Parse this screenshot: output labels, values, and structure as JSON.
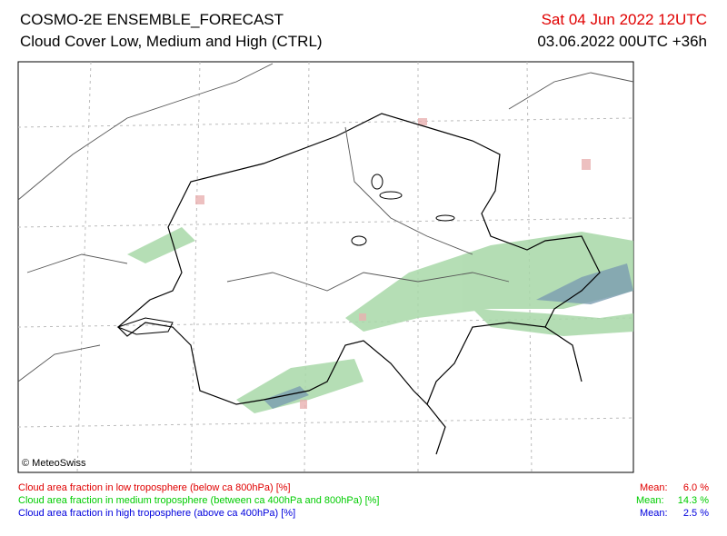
{
  "header": {
    "title": "COSMO-2E ENSEMBLE_FORECAST",
    "subtitle": "Cloud Cover Low, Medium and High (CTRL)",
    "valid_time": "Sat 04 Jun 2022 12UTC",
    "run_time": "03.06.2022 00UTC +36h"
  },
  "map": {
    "copyright": "© MeteoSwiss"
  },
  "legend": [
    {
      "label": "Cloud area fraction in low troposphere (below ca 800hPa) [%]",
      "mean_label": "Mean:",
      "mean": "6.0 %"
    },
    {
      "label": "Cloud area fraction in medium troposphere (between ca 400hPa and 800hPa) [%]",
      "mean_label": "Mean:",
      "mean": "14.3 %"
    },
    {
      "label": "Cloud area fraction in high troposphere (above ca 400hPa) [%]",
      "mean_label": "Mean:",
      "mean": "2.5 %"
    }
  ]
}
